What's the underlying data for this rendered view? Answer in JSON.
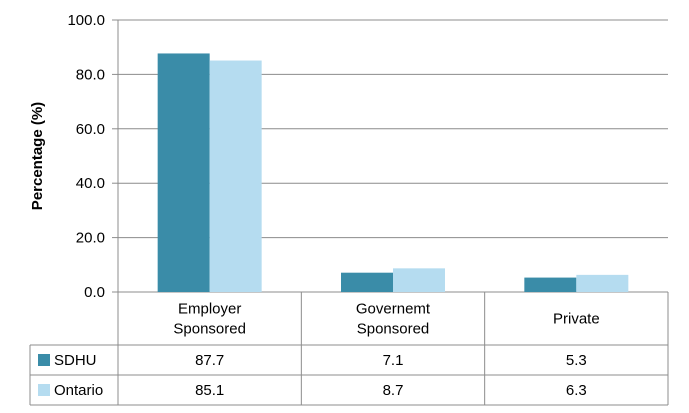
{
  "chart_data": {
    "type": "bar",
    "title": "",
    "xlabel": "",
    "ylabel": "Percentage (%)",
    "ylim": [
      0,
      100
    ],
    "yticks": [
      "0.0",
      "20.0",
      "40.0",
      "60.0",
      "80.0",
      "100.0"
    ],
    "grid": true,
    "legend_placement": "data-table",
    "categories": [
      [
        "Employer",
        "Sponsored"
      ],
      [
        "Governemt",
        "Sponsored"
      ],
      [
        "Private"
      ]
    ],
    "series": [
      {
        "name": "SDHU",
        "color": "#3a8ca8",
        "values": [
          87.7,
          7.1,
          5.3
        ],
        "labels": [
          "87.7",
          "7.1",
          "5.3"
        ]
      },
      {
        "name": "Ontario",
        "color": "#b5dcf0",
        "values": [
          85.1,
          8.7,
          6.3
        ],
        "labels": [
          "85.1",
          "8.7",
          "6.3"
        ]
      }
    ]
  }
}
